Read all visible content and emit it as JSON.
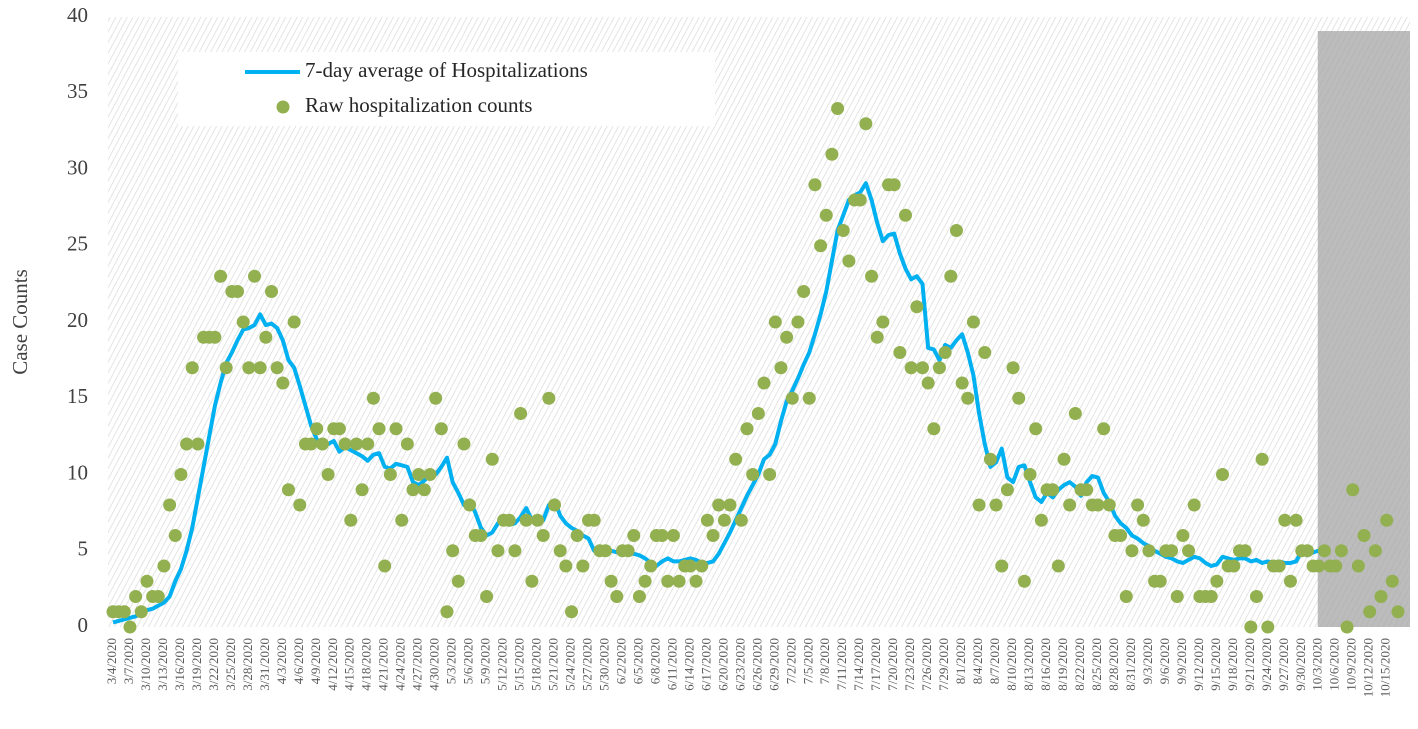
{
  "chart_data": {
    "type": "line",
    "y_label": "Case Counts",
    "categories": [
      "3/4/2020",
      null,
      null,
      "3/7/2020",
      null,
      null,
      "3/10/2020",
      null,
      null,
      "3/13/2020",
      null,
      null,
      "3/16/2020",
      null,
      null,
      "3/19/2020",
      null,
      null,
      "3/22/2020",
      null,
      null,
      "3/25/2020",
      null,
      null,
      "3/28/2020",
      null,
      null,
      "3/31/2020",
      null,
      null,
      "4/3/2020",
      null,
      null,
      "4/6/2020",
      null,
      null,
      "4/9/2020",
      null,
      null,
      "4/12/2020",
      null,
      null,
      "4/15/2020",
      null,
      null,
      "4/18/2020",
      null,
      null,
      "4/21/2020",
      null,
      null,
      "4/24/2020",
      null,
      null,
      "4/27/2020",
      null,
      null,
      "4/30/2020",
      null,
      null,
      "5/3/2020",
      null,
      null,
      "5/6/2020",
      null,
      null,
      "5/9/2020",
      null,
      null,
      "5/12/2020",
      null,
      null,
      "5/15/2020",
      null,
      null,
      "5/18/2020",
      null,
      null,
      "5/21/2020",
      null,
      null,
      "5/24/2020",
      null,
      null,
      "5/27/2020",
      null,
      null,
      "5/30/2020",
      null,
      null,
      "6/2/2020",
      null,
      null,
      "6/5/2020",
      null,
      null,
      "6/8/2020",
      null,
      null,
      "6/11/2020",
      null,
      null,
      "6/14/2020",
      null,
      null,
      "6/17/2020",
      null,
      null,
      "6/20/2020",
      null,
      null,
      "6/23/2020",
      null,
      null,
      "6/26/2020",
      null,
      null,
      "6/29/2020",
      null,
      null,
      "7/2/2020",
      null,
      null,
      "7/5/2020",
      null,
      null,
      "7/8/2020",
      null,
      null,
      "7/11/2020",
      null,
      null,
      "7/14/2020",
      null,
      null,
      "7/17/2020",
      null,
      null,
      "7/20/2020",
      null,
      null,
      "7/23/2020",
      null,
      null,
      "7/26/2020",
      null,
      null,
      "7/29/2020",
      null,
      null,
      "8/1/2020",
      null,
      null,
      "8/4/2020",
      null,
      null,
      "8/7/2020",
      null,
      null,
      "8/10/2020",
      null,
      null,
      "8/13/2020",
      null,
      null,
      "8/16/2020",
      null,
      null,
      "8/19/2020",
      null,
      null,
      "8/22/2020",
      null,
      null,
      "8/25/2020",
      null,
      null,
      "8/28/2020",
      null,
      null,
      "8/31/2020",
      null,
      null,
      "9/3/2020",
      null,
      null,
      "9/6/2020",
      null,
      null,
      "9/9/2020",
      null,
      null,
      "9/12/2020",
      null,
      null,
      "9/15/2020",
      null,
      null,
      "9/18/2020",
      null,
      null,
      "9/21/2020",
      null,
      null,
      "9/24/2020",
      null,
      null,
      "9/27/2020",
      null,
      null,
      "9/30/2020",
      null,
      null,
      "10/3/2020",
      null,
      null,
      "10/6/2020",
      null,
      null,
      "10/9/2020",
      null,
      null,
      "10/12/2020",
      null,
      null,
      "10/15/2020",
      null,
      null
    ],
    "series": [
      {
        "name": "7-day average of Hospitalizations",
        "mode": "line",
        "color": "#00b0f0",
        "values": [
          0.3,
          0.4,
          0.5,
          0.6,
          0.7,
          0.9,
          1.1,
          1.2,
          1.4,
          1.6,
          2,
          3,
          3.8,
          5,
          6.5,
          8.5,
          10.5,
          12.5,
          14.5,
          16,
          17.3,
          18,
          18.8,
          19.5,
          19.6,
          19.8,
          20.5,
          19.8,
          19.9,
          19.6,
          18.8,
          17.5,
          17,
          15.8,
          14.5,
          13.2,
          12.3,
          12,
          12,
          12.2,
          11.5,
          11.8,
          11.6,
          11.4,
          11.2,
          10.9,
          11.3,
          11.4,
          10.5,
          10.4,
          10.7,
          10.6,
          10.5,
          9.5,
          9.3,
          9.6,
          10,
          10,
          10.5,
          11.1,
          9.5,
          8.8,
          8,
          8.3,
          7.5,
          6.5,
          6,
          6.2,
          6.8,
          7,
          6.7,
          6.8,
          7.2,
          7.8,
          7,
          7.1,
          7,
          8,
          8.3,
          7.3,
          6.8,
          6.5,
          6.3,
          6,
          5.8,
          5,
          5,
          5,
          5,
          4.9,
          5,
          4.8,
          4.8,
          4.7,
          4.5,
          4.2,
          4,
          4.3,
          4.5,
          4.3,
          4.3,
          4.4,
          4.5,
          4.4,
          4.2,
          4.2,
          4.3,
          4.8,
          5.5,
          6.2,
          7,
          7.8,
          8.6,
          9.3,
          10,
          11,
          11.3,
          12,
          13.5,
          14.8,
          15.5,
          16.3,
          17.2,
          18,
          19.2,
          20.5,
          22,
          24,
          26,
          27,
          28,
          28.3,
          28.5,
          29.1,
          28,
          26.5,
          25.3,
          25.7,
          25.8,
          24.5,
          23.5,
          22.8,
          23,
          22.5,
          18.3,
          18.2,
          17.5,
          18.5,
          18.3,
          18.8,
          19.2,
          18,
          16.5,
          14,
          12,
          10.5,
          10.8,
          11.7,
          9.8,
          9.5,
          10.5,
          10.6,
          9.5,
          8.5,
          8.2,
          8.8,
          8.5,
          9,
          9.3,
          9.5,
          9.2,
          8.6,
          9.5,
          9.9,
          9.8,
          8.8,
          8.2,
          7.3,
          6.8,
          6.5,
          6,
          5.8,
          5.5,
          5.3,
          5,
          4.8,
          4.6,
          4.5,
          4.3,
          4.2,
          4.4,
          4.6,
          4.5,
          4.2,
          4,
          4.1,
          4.6,
          4.5,
          4.4,
          4.5,
          4.5,
          4.3,
          4.4,
          4.2,
          4.3,
          4.2,
          4.3,
          4.2,
          4.2,
          4.3,
          5,
          4.7,
          4.9,
          5,
          null,
          null,
          null,
          null,
          null,
          null,
          null,
          null,
          null,
          null,
          null,
          null,
          null,
          null
        ]
      },
      {
        "name": "Raw hospitalization counts",
        "mode": "markers",
        "color": "#92b050",
        "values": [
          1,
          1,
          1,
          0,
          2,
          1,
          3,
          2,
          2,
          4,
          8,
          6,
          10,
          12,
          17,
          12,
          19,
          19,
          19,
          23,
          17,
          22,
          22,
          20,
          17,
          23,
          17,
          19,
          22,
          17,
          16,
          9,
          20,
          8,
          12,
          12,
          13,
          12,
          10,
          13,
          13,
          12,
          7,
          12,
          9,
          12,
          15,
          13,
          4,
          10,
          13,
          7,
          12,
          9,
          10,
          9,
          10,
          15,
          13,
          1,
          5,
          3,
          12,
          8,
          6,
          6,
          2,
          11,
          5,
          7,
          7,
          5,
          14,
          7,
          3,
          7,
          6,
          15,
          8,
          5,
          4,
          1,
          6,
          4,
          7,
          7,
          5,
          5,
          3,
          2,
          5,
          5,
          6,
          2,
          3,
          4,
          6,
          6,
          3,
          6,
          3,
          4,
          4,
          3,
          4,
          7,
          6,
          8,
          7,
          8,
          11,
          7,
          13,
          10,
          14,
          16,
          10,
          20,
          17,
          19,
          15,
          20,
          22,
          15,
          29,
          25,
          27,
          31,
          34,
          26,
          24,
          28,
          28,
          33,
          23,
          19,
          20,
          29,
          29,
          18,
          27,
          17,
          21,
          17,
          16,
          13,
          17,
          18,
          23,
          26,
          16,
          15,
          20,
          8,
          18,
          11,
          8,
          4,
          9,
          17,
          15,
          3,
          10,
          13,
          7,
          9,
          9,
          4,
          11,
          8,
          14,
          9,
          9,
          8,
          8,
          13,
          8,
          6,
          6,
          2,
          5,
          8,
          7,
          5,
          3,
          3,
          5,
          5,
          2,
          6,
          5,
          8,
          2,
          2,
          2,
          3,
          10,
          4,
          4,
          5,
          5,
          0,
          2,
          11,
          0,
          4,
          4,
          7,
          3,
          7,
          5,
          5,
          4,
          4,
          5,
          4,
          4,
          5,
          0,
          9,
          4,
          6,
          1,
          5,
          2,
          7,
          3,
          1
        ]
      }
    ],
    "ylim": [
      0,
      40
    ],
    "yticks": [
      0,
      5,
      10,
      15,
      20,
      25,
      30,
      35,
      40
    ],
    "grid": false,
    "highlight_from": "10/3/2020",
    "highlight_color": "#a6a6a6"
  }
}
